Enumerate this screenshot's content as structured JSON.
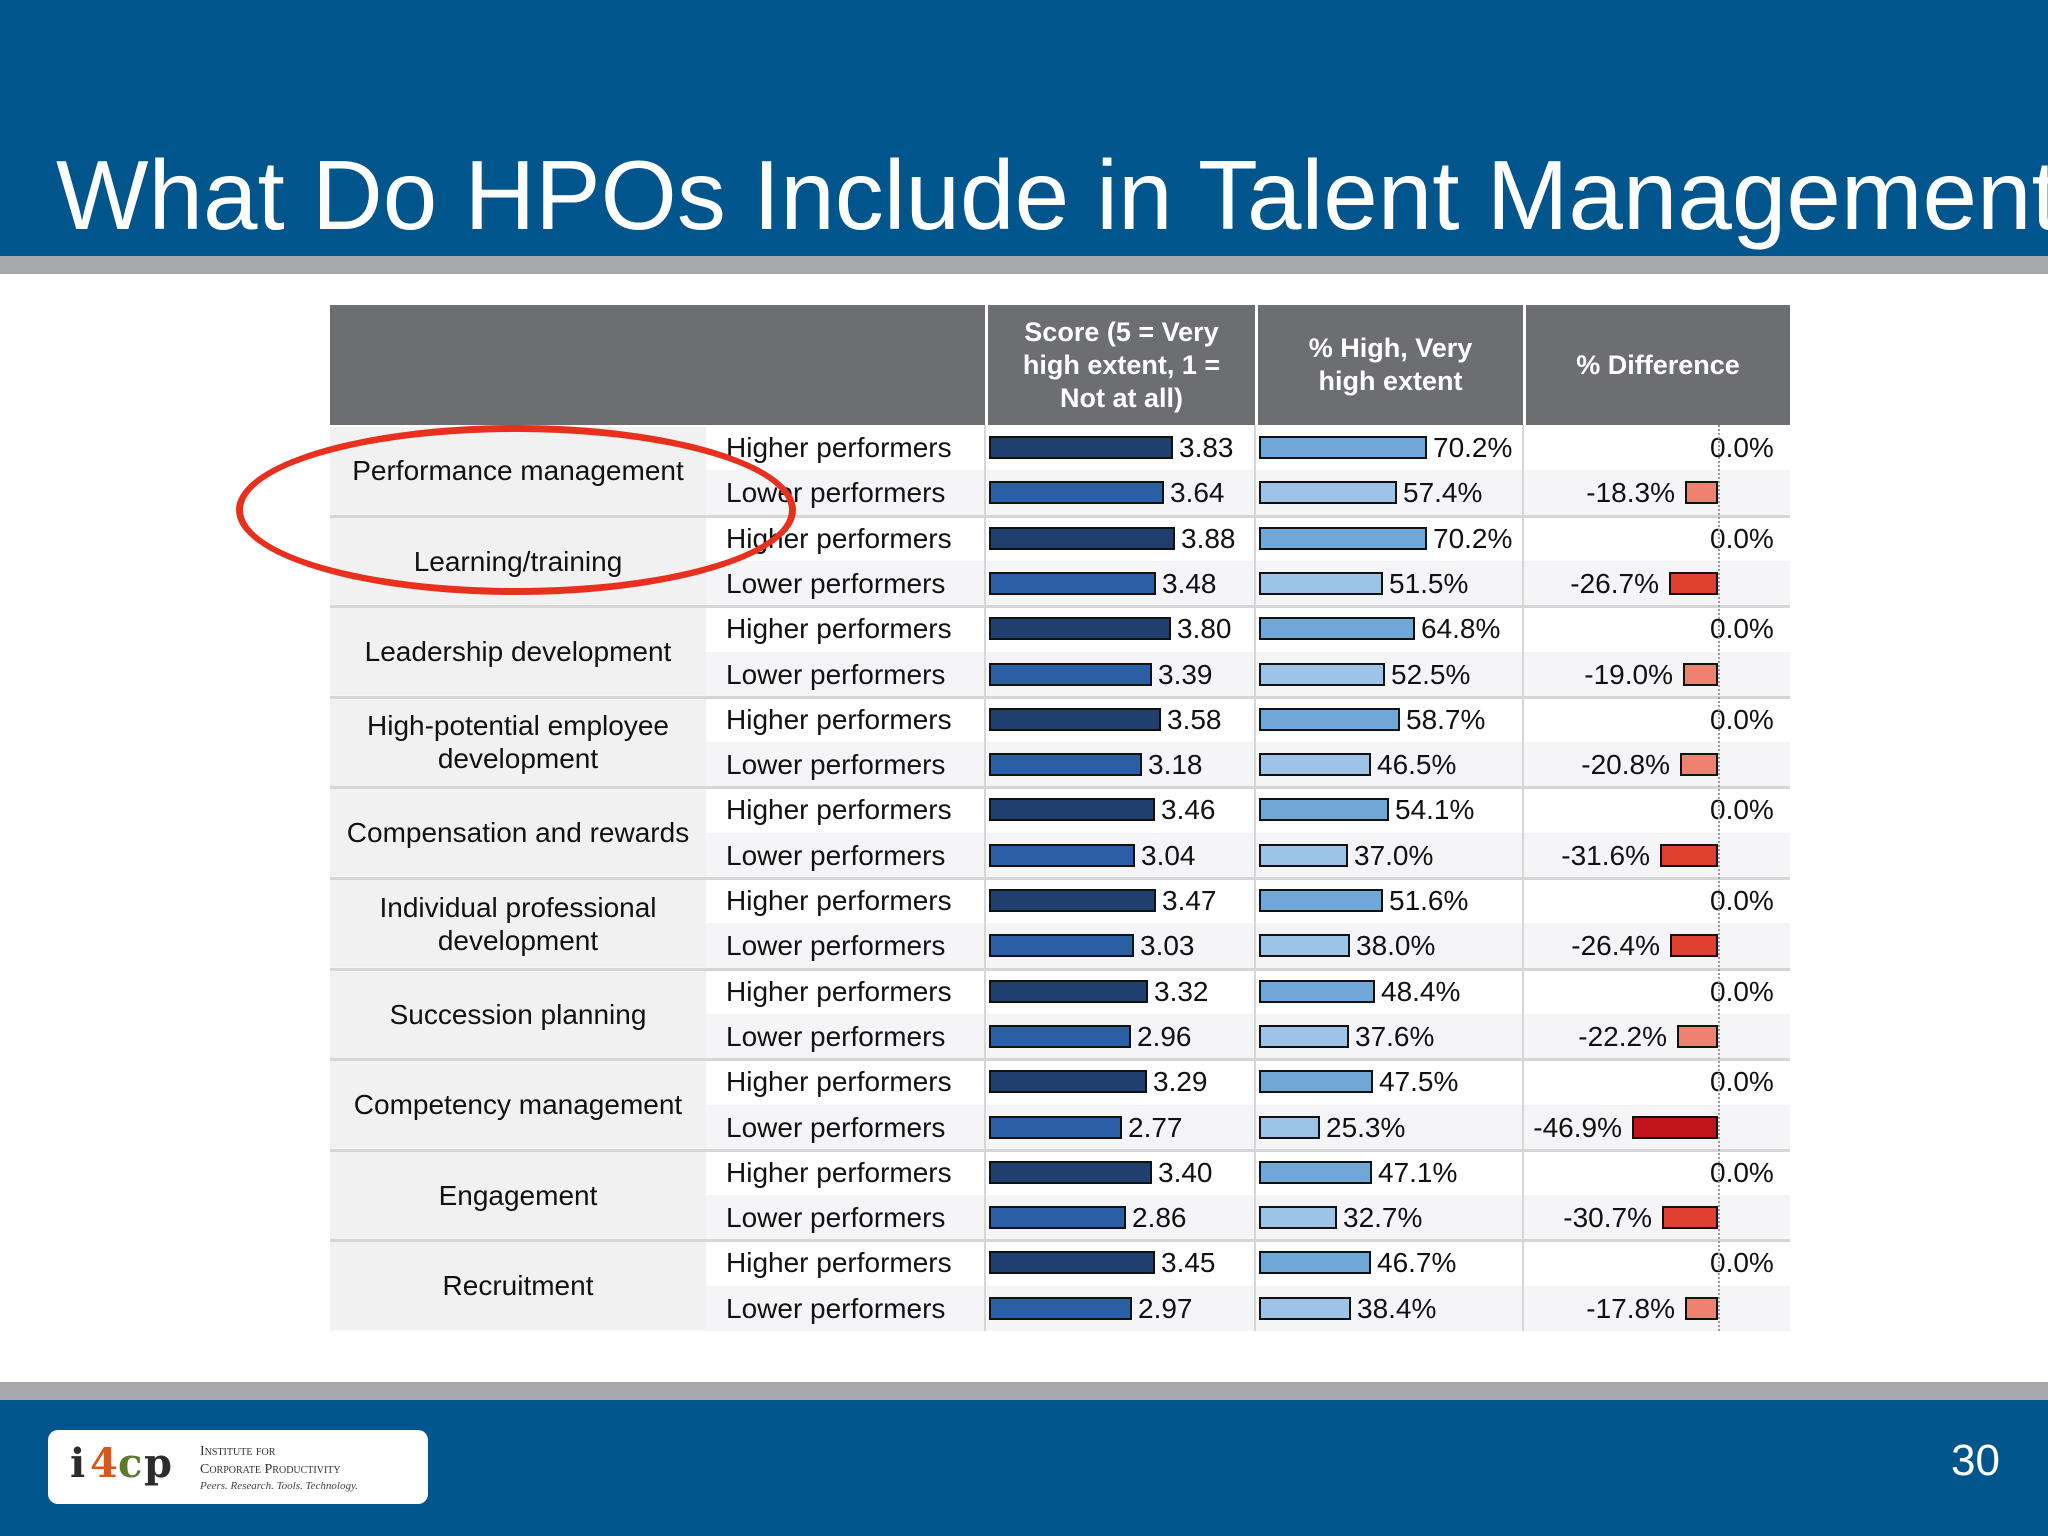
{
  "slide": {
    "title": "What Do HPOs Include in Talent Management?",
    "page_number": "30",
    "logo": {
      "mark_i": "i",
      "mark_4": "4",
      "mark_c": "c",
      "mark_p": "p",
      "line1": "Institute for",
      "line2": "Corporate Productivity",
      "line3": "Peers. Research. Tools. Technology."
    }
  },
  "table": {
    "headers": {
      "score": "Score (5 = Very high extent, 1 = Not at all)",
      "pct": "% High, Very high extent",
      "diff": "% Difference"
    },
    "higher_label": "Higher performers",
    "lower_label": "Lower performers"
  },
  "chart_data": {
    "type": "bar",
    "categories": [
      "Performance management",
      "Learning/training",
      "Leadership development",
      "High-potential employee development",
      "Compensation and rewards",
      "Individual professional development",
      "Succession planning",
      "Competency management",
      "Engagement",
      "Recruitment"
    ],
    "series": [
      {
        "name": "Higher performers",
        "score": [
          3.83,
          3.88,
          3.8,
          3.58,
          3.46,
          3.47,
          3.32,
          3.29,
          3.4,
          3.45
        ],
        "pct": [
          70.2,
          70.2,
          64.8,
          58.7,
          54.1,
          51.6,
          48.4,
          47.5,
          47.1,
          46.7
        ],
        "diff": [
          0.0,
          0.0,
          0.0,
          0.0,
          0.0,
          0.0,
          0.0,
          0.0,
          0.0,
          0.0
        ]
      },
      {
        "name": "Lower performers",
        "score": [
          3.64,
          3.48,
          3.39,
          3.18,
          3.04,
          3.03,
          2.96,
          2.77,
          2.86,
          2.97
        ],
        "pct": [
          57.4,
          51.5,
          52.5,
          46.5,
          37.0,
          38.0,
          37.6,
          25.3,
          32.7,
          38.4
        ],
        "diff": [
          -18.3,
          -26.7,
          -19.0,
          -20.8,
          -31.6,
          -26.4,
          -22.2,
          -46.9,
          -30.7,
          -17.8
        ]
      }
    ],
    "score_labels": {
      "higher": [
        "3.83",
        "3.88",
        "3.80",
        "3.58",
        "3.46",
        "3.47",
        "3.32",
        "3.29",
        "3.40",
        "3.45"
      ],
      "lower": [
        "3.64",
        "3.48",
        "3.39",
        "3.18",
        "3.04",
        "3.03",
        "2.96",
        "2.77",
        "2.86",
        "2.97"
      ]
    },
    "pct_labels": {
      "higher": [
        "70.2%",
        "70.2%",
        "64.8%",
        "58.7%",
        "54.1%",
        "51.6%",
        "48.4%",
        "47.5%",
        "47.1%",
        "46.7%"
      ],
      "lower": [
        "57.4%",
        "51.5%",
        "52.5%",
        "46.5%",
        "37.0%",
        "38.0%",
        "37.6%",
        "25.3%",
        "32.7%",
        "38.4%"
      ]
    },
    "diff_labels": {
      "higher": [
        "0.0%",
        "0.0%",
        "0.0%",
        "0.0%",
        "0.0%",
        "0.0%",
        "0.0%",
        "0.0%",
        "0.0%",
        "0.0%"
      ],
      "lower": [
        "-18.3%",
        "-26.7%",
        "-19.0%",
        "-20.8%",
        "-31.6%",
        "-26.4%",
        "-22.2%",
        "-46.9%",
        "-30.7%",
        "-17.8%"
      ]
    },
    "highlighted_categories": [
      "Performance management",
      "Learning/training"
    ],
    "colors": {
      "score_high": "#1F3F6F",
      "score_low": "#2A5FA6",
      "pct_high": "#6FA8D6",
      "pct_low": "#9DC3E6",
      "diff_neg_light": "#F08070",
      "diff_neg_mid": "#E04030",
      "diff_neg_dark": "#C0141A",
      "highlight": "#E8301F"
    }
  }
}
